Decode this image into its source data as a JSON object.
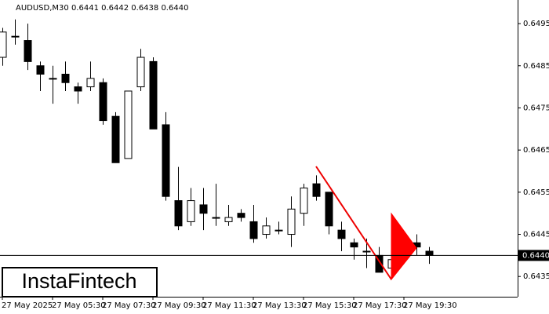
{
  "chart_data": {
    "type": "candlestick",
    "title": "AUDUSD,M30  0.6441 0.6442 0.6438 0.6440",
    "categories": [
      "27 May 2025",
      null,
      null,
      null,
      "27 May 05:30",
      null,
      null,
      null,
      "27 May 07:30",
      null,
      null,
      null,
      "27 May 09:30",
      null,
      null,
      null,
      "27 May 11:30",
      null,
      null,
      null,
      "27 May 13:30",
      null,
      null,
      null,
      "27 May 15:30",
      null,
      null,
      null,
      "27 May 17:30",
      null,
      null,
      null,
      "27 May 19:30",
      null,
      null
    ],
    "open": [
      0.6487,
      0.6492,
      0.6491,
      0.6485,
      0.6482,
      0.6483,
      0.648,
      0.648,
      0.6481,
      0.6473,
      0.6463,
      0.648,
      0.6486,
      0.6471,
      0.6453,
      0.6448,
      0.6452,
      0.6449,
      0.6448,
      0.645,
      0.6448,
      0.6445,
      0.6446,
      0.6445,
      0.645,
      0.6457,
      0.6455,
      0.6446,
      0.6443,
      0.6441,
      0.644,
      0.6437,
      0.644,
      0.6443,
      0.6441
    ],
    "high": [
      0.6494,
      0.6496,
      0.6495,
      0.6486,
      0.6485,
      0.6486,
      0.6481,
      0.6486,
      0.6482,
      0.6474,
      0.6479,
      0.6489,
      0.6487,
      0.6474,
      0.6461,
      0.6456,
      0.6456,
      0.6457,
      0.6452,
      0.6451,
      0.6452,
      0.6449,
      0.6448,
      0.6454,
      0.6457,
      0.6459,
      0.6455,
      0.6448,
      0.6444,
      0.6444,
      0.6442,
      0.644,
      0.6445,
      0.6445,
      0.6442
    ],
    "low": [
      0.6485,
      0.649,
      0.6484,
      0.6479,
      0.6476,
      0.6479,
      0.6476,
      0.6479,
      0.6471,
      0.6462,
      0.6463,
      0.6479,
      0.647,
      0.6453,
      0.6446,
      0.6447,
      0.6446,
      0.6447,
      0.6447,
      0.6448,
      0.6443,
      0.6444,
      0.6445,
      0.6442,
      0.6447,
      0.6453,
      0.6445,
      0.6441,
      0.6439,
      0.6437,
      0.6436,
      0.6435,
      0.6439,
      0.644,
      0.6438
    ],
    "close": [
      0.6493,
      0.6492,
      0.6486,
      0.6483,
      0.6482,
      0.6481,
      0.6479,
      0.6482,
      0.6472,
      0.6462,
      0.6479,
      0.6487,
      0.647,
      0.6454,
      0.6447,
      0.6453,
      0.645,
      0.6449,
      0.6449,
      0.6449,
      0.6444,
      0.6447,
      0.6446,
      0.6451,
      0.6456,
      0.6454,
      0.6447,
      0.6444,
      0.6442,
      0.6441,
      0.6436,
      0.6439,
      0.6444,
      0.6442,
      0.644
    ],
    "up_color": "#ffffff",
    "down_color": "#000000",
    "ylim": [
      0.64302,
      0.65006
    ],
    "yticks": [
      0.6495,
      0.6485,
      0.6475,
      0.6465,
      0.6455,
      0.6445,
      0.6435
    ],
    "last_price": {
      "value": 0.644,
      "label": "0.6440"
    }
  },
  "logo": "InstaFintech"
}
